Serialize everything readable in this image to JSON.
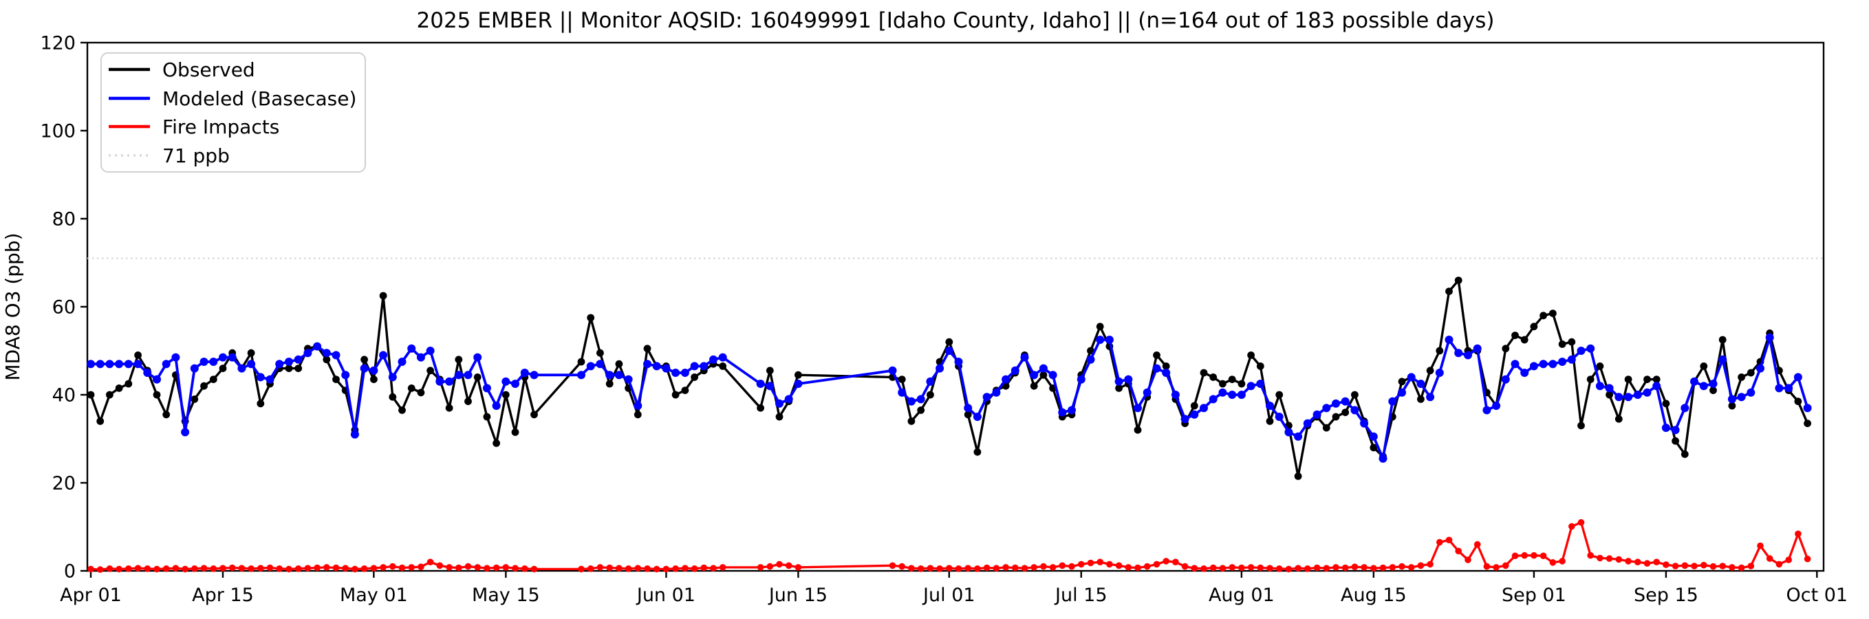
{
  "title": "2025 EMBER || Monitor AQSID: 160499991 [Idaho County, Idaho] || (n=164 out of 183 possible days)",
  "ylabel": "MDA8 O3 (ppb)",
  "colors": {
    "observed": "#000000",
    "modeled": "#0000ff",
    "fire": "#ff0000",
    "threshold": "#d9d9d9",
    "frame": "#000000",
    "legend_border": "#d0d0d0"
  },
  "legend": {
    "items": [
      {
        "label": "Observed",
        "color": "#000000",
        "style": "solid"
      },
      {
        "label": "Modeled (Basecase)",
        "color": "#0000ff",
        "style": "solid"
      },
      {
        "label": "Fire Impacts",
        "color": "#ff0000",
        "style": "solid"
      },
      {
        "label": "71 ppb",
        "color": "#d9d9d9",
        "style": "dotted"
      }
    ]
  },
  "axis": {
    "ylim": [
      0,
      120
    ],
    "yticks": [
      0,
      20,
      40,
      60,
      80,
      100,
      120
    ],
    "threshold_value": 71,
    "xticks": [
      {
        "label": "Apr 01",
        "day": 0
      },
      {
        "label": "Apr 15",
        "day": 14
      },
      {
        "label": "May 01",
        "day": 30
      },
      {
        "label": "May 15",
        "day": 44
      },
      {
        "label": "Jun 01",
        "day": 61
      },
      {
        "label": "Jun 15",
        "day": 75
      },
      {
        "label": "Jul 01",
        "day": 91
      },
      {
        "label": "Jul 15",
        "day": 105
      },
      {
        "label": "Aug 01",
        "day": 122
      },
      {
        "label": "Aug 15",
        "day": 136
      },
      {
        "label": "Sep 01",
        "day": 153
      },
      {
        "label": "Sep 15",
        "day": 167
      },
      {
        "label": "Oct 01",
        "day": 183
      }
    ]
  },
  "chart_data": {
    "type": "line",
    "title": "2025 EMBER || Monitor AQSID: 160499991 [Idaho County, Idaho] || (n=164 out of 183 possible days)",
    "xlabel": "",
    "ylabel": "MDA8 O3 (ppb)",
    "ylim": [
      0,
      120
    ],
    "x_start": "Apr 01",
    "x_end": "Sep 30",
    "n_days": 183,
    "n_observed_label": "n=164 out of 183 possible days",
    "threshold_ppb": 71,
    "legend_position": "upper-left",
    "grid": false,
    "units": "ppb",
    "series": [
      {
        "name": "Observed",
        "color": "#000000",
        "marker": "circle",
        "values": [
          40,
          34,
          40,
          41.5,
          42.5,
          49,
          45.5,
          40,
          35.5,
          44.5,
          34,
          39,
          42,
          43.5,
          46,
          49.5,
          46,
          49.5,
          38,
          42.5,
          46,
          46,
          46,
          50.5,
          51,
          48,
          43.5,
          41,
          32,
          48,
          43.5,
          62.5,
          39.5,
          36.5,
          41.5,
          40.5,
          45.5,
          43.5,
          37,
          48,
          38.5,
          44,
          35,
          29,
          40,
          31.5,
          44,
          35.5,
          null,
          null,
          null,
          null,
          47.5,
          57.5,
          49.5,
          42.5,
          47,
          41.5,
          35.5,
          50.5,
          46.5,
          46.5,
          40,
          41,
          44,
          45.5,
          47,
          46.5,
          null,
          null,
          null,
          37,
          45.5,
          35,
          38.5,
          44.5,
          null,
          null,
          null,
          null,
          null,
          null,
          null,
          null,
          null,
          44,
          43.5,
          34,
          36.5,
          40,
          47.5,
          52,
          46.5,
          35.5,
          27,
          38.5,
          41,
          42,
          45,
          49,
          42,
          44.5,
          41.5,
          35,
          35.5,
          44.5,
          50,
          55.5,
          51,
          41.5,
          42.5,
          32,
          39.5,
          49,
          46.5,
          39,
          33.5,
          37.5,
          45,
          44,
          42.5,
          43.5,
          42.5,
          49,
          46.5,
          34,
          40,
          33,
          21.5,
          33,
          35,
          32.5,
          35,
          36,
          40,
          34,
          28,
          26,
          35,
          43,
          44,
          39,
          45.5,
          50,
          63.5,
          66,
          50,
          50,
          40.5,
          37.5,
          50.5,
          53.5,
          52.5,
          55.5,
          58,
          58.5,
          51.5,
          52,
          33,
          43.5,
          46.5,
          40,
          34.5,
          43.5,
          40,
          43.5,
          43.5,
          38,
          29.5,
          26.5,
          43,
          46.5,
          41,
          52.5,
          37.5,
          44,
          45,
          47.5,
          54,
          45.5,
          41,
          38.5,
          33.5
        ]
      },
      {
        "name": "Modeled (Basecase)",
        "color": "#0000ff",
        "marker": "circle",
        "values": [
          47,
          47,
          47,
          47,
          47,
          47,
          45,
          43.5,
          47,
          48.5,
          31.5,
          46,
          47.5,
          47.5,
          48.5,
          48.5,
          46,
          47,
          44,
          43.5,
          47,
          47.5,
          48,
          49.5,
          51,
          49.5,
          49,
          44.5,
          31,
          46,
          45.5,
          49,
          44,
          47.5,
          50.5,
          48.5,
          50,
          43,
          43,
          44.5,
          44.5,
          48.5,
          41.5,
          37.5,
          43,
          42.5,
          45,
          44.5,
          null,
          null,
          null,
          null,
          44.5,
          46.5,
          47,
          44.5,
          44.5,
          43.5,
          37.5,
          47,
          46.5,
          46,
          45,
          45,
          46.5,
          46.5,
          48,
          48.5,
          null,
          null,
          null,
          42.5,
          42,
          38,
          39,
          42.5,
          null,
          null,
          null,
          null,
          null,
          null,
          null,
          null,
          null,
          45.5,
          40.5,
          38.5,
          39,
          43,
          46,
          50,
          47.5,
          37,
          35,
          39.5,
          40.5,
          43.5,
          45.5,
          48.5,
          44.5,
          46,
          44.5,
          36,
          36.5,
          43.5,
          48,
          52.5,
          52.5,
          43,
          43.5,
          37,
          40.5,
          46,
          45,
          40,
          34.5,
          35.5,
          37,
          39,
          40.5,
          40,
          40,
          42,
          42.5,
          37.5,
          35,
          31.5,
          30.5,
          33.5,
          35.5,
          37,
          38,
          38.5,
          36.5,
          33.5,
          30.5,
          25.5,
          38.5,
          40.5,
          44,
          42.5,
          39.5,
          45,
          52.5,
          49.5,
          49,
          50.5,
          36.5,
          37.5,
          43.5,
          47,
          45,
          46.5,
          47,
          47,
          47.5,
          48,
          50,
          50.5,
          42,
          41.5,
          39.5,
          39.5,
          40,
          40.5,
          42,
          32.5,
          32,
          37,
          43,
          42,
          42.5,
          48,
          39,
          39.5,
          40.5,
          46,
          53,
          41.5,
          41.5,
          44,
          37
        ]
      },
      {
        "name": "Fire Impacts",
        "color": "#ff0000",
        "marker": "circle",
        "values": [
          0.4,
          0.3,
          0.5,
          0.4,
          0.5,
          0.6,
          0.5,
          0.4,
          0.5,
          0.6,
          0.4,
          0.5,
          0.6,
          0.5,
          0.6,
          0.7,
          0.6,
          0.5,
          0.6,
          0.7,
          0.5,
          0.4,
          0.5,
          0.6,
          0.7,
          0.8,
          0.7,
          0.6,
          0.4,
          0.5,
          0.6,
          0.8,
          1,
          0.7,
          0.8,
          0.9,
          2,
          1.2,
          0.8,
          0.7,
          1,
          0.8,
          0.6,
          0.7,
          0.8,
          0.6,
          0.5,
          0.4,
          null,
          null,
          null,
          null,
          0.4,
          0.5,
          0.8,
          0.7,
          0.6,
          0.5,
          0.6,
          0.5,
          0.4,
          0.4,
          0.5,
          0.6,
          0.5,
          0.7,
          0.6,
          0.8,
          null,
          null,
          null,
          0.8,
          1,
          1.5,
          1.2,
          0.8,
          null,
          null,
          null,
          null,
          null,
          null,
          null,
          null,
          null,
          1.2,
          1,
          0.6,
          0.5,
          0.6,
          0.5,
          0.6,
          0.5,
          0.6,
          0.5,
          0.7,
          0.6,
          0.8,
          0.7,
          0.6,
          0.8,
          1,
          0.8,
          1.2,
          1,
          1.5,
          1.8,
          2,
          1.5,
          1.2,
          0.8,
          0.7,
          1,
          1.5,
          2.2,
          2,
          1,
          0.6,
          0.5,
          0.7,
          0.6,
          0.8,
          0.7,
          0.8,
          0.7,
          0.6,
          0.5,
          0.4,
          0.6,
          0.5,
          0.7,
          0.6,
          0.8,
          0.7,
          0.9,
          0.8,
          0.6,
          0.7,
          0.8,
          1,
          0.8,
          1.2,
          1.5,
          6.5,
          7,
          4.5,
          2.5,
          6,
          1,
          0.8,
          1.2,
          3.4,
          3.5,
          3.5,
          3.4,
          1.9,
          2.2,
          10.1,
          11,
          3.5,
          2.9,
          2.8,
          2.6,
          2.2,
          2,
          1.7,
          2,
          1.4,
          1.1,
          1.2,
          1.1,
          1.3,
          1,
          1.1,
          0.8,
          0.7,
          1.1,
          5.7,
          2.8,
          1.5,
          2.5,
          8.4,
          2.7
        ]
      }
    ]
  }
}
